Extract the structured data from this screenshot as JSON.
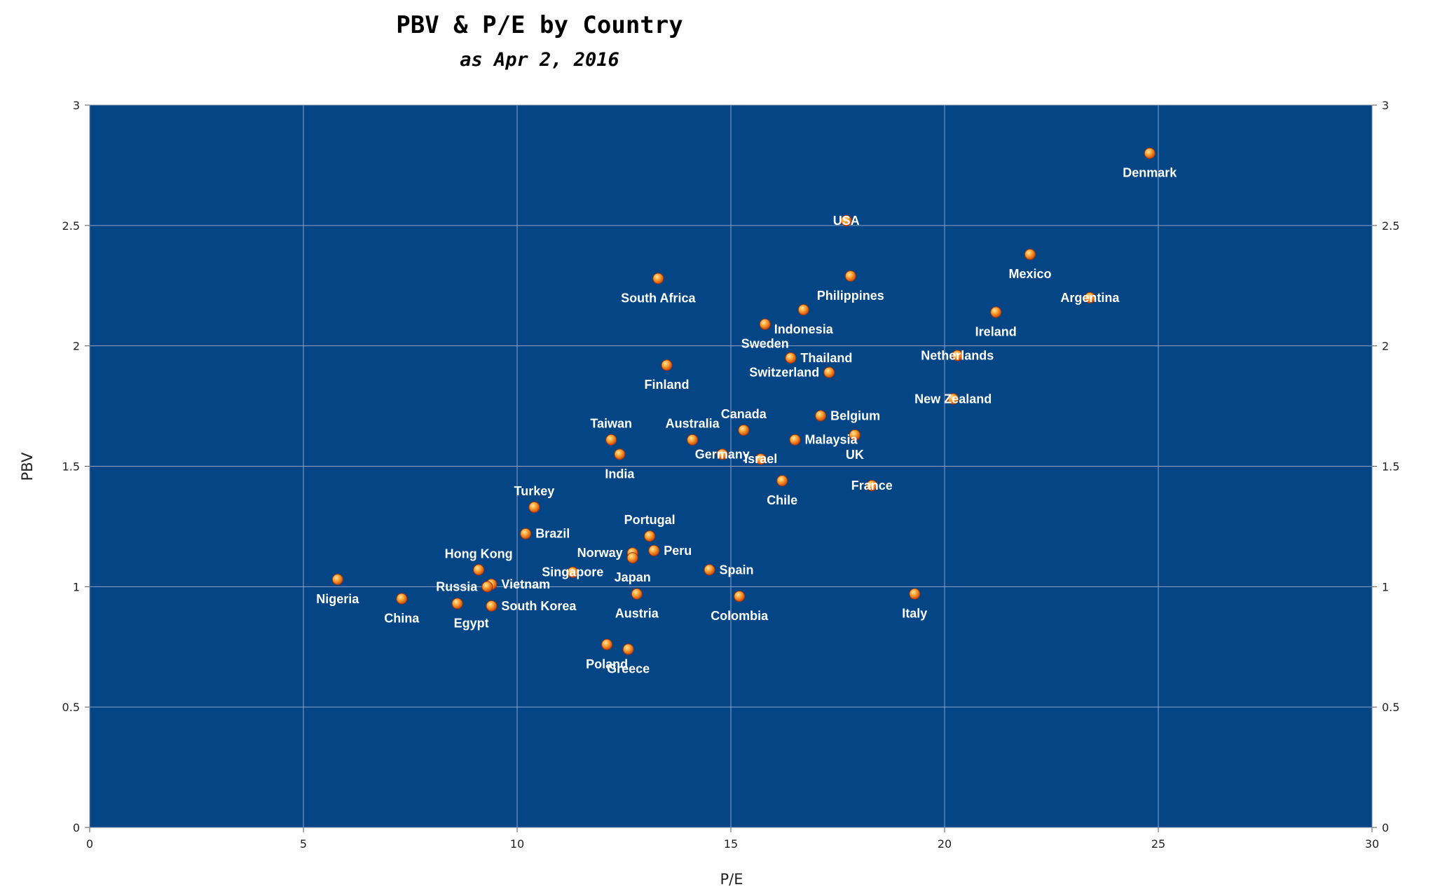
{
  "chart_data": {
    "type": "scatter",
    "title": "PBV & P/E by Country",
    "subtitle": "as Apr 2, 2016",
    "xlabel": "P/E",
    "ylabel": "PBV",
    "xlim": [
      0,
      30
    ],
    "ylim": [
      0,
      3
    ],
    "x_ticks": [
      "0",
      "5",
      "10",
      "15",
      "20",
      "25",
      "30"
    ],
    "y_ticks": [
      "0",
      "0.5",
      "1",
      "1.5",
      "2",
      "2.5",
      "3"
    ],
    "grid": true,
    "legend": "none",
    "colors": {
      "plot_background": "#034585",
      "gridline": "#8aa4c8",
      "marker": "#f07d1a",
      "label": "#ffffff"
    },
    "points": [
      {
        "name": "Denmark",
        "x": 24.8,
        "y": 2.8,
        "label_pos": "below"
      },
      {
        "name": "USA",
        "x": 17.7,
        "y": 2.52,
        "label_pos": "center"
      },
      {
        "name": "Mexico",
        "x": 22.0,
        "y": 2.38,
        "label_pos": "below"
      },
      {
        "name": "Philippines",
        "x": 17.8,
        "y": 2.29,
        "label_pos": "below"
      },
      {
        "name": "South Africa",
        "x": 13.3,
        "y": 2.28,
        "label_pos": "below"
      },
      {
        "name": "Argentina",
        "x": 23.4,
        "y": 2.2,
        "label_pos": "center"
      },
      {
        "name": "Indonesia",
        "x": 16.7,
        "y": 2.15,
        "label_pos": "below"
      },
      {
        "name": "Ireland",
        "x": 21.2,
        "y": 2.14,
        "label_pos": "below"
      },
      {
        "name": "Sweden",
        "x": 15.8,
        "y": 2.09,
        "label_pos": "below"
      },
      {
        "name": "Thailand",
        "x": 16.4,
        "y": 1.95,
        "label_pos": "right"
      },
      {
        "name": "Netherlands",
        "x": 20.3,
        "y": 1.96,
        "label_pos": "center"
      },
      {
        "name": "Finland",
        "x": 13.5,
        "y": 1.92,
        "label_pos": "below"
      },
      {
        "name": "Switzerland",
        "x": 17.3,
        "y": 1.89,
        "label_pos": "left"
      },
      {
        "name": "New Zealand",
        "x": 20.2,
        "y": 1.78,
        "label_pos": "center"
      },
      {
        "name": "Belgium",
        "x": 17.1,
        "y": 1.71,
        "label_pos": "right"
      },
      {
        "name": "Canada",
        "x": 15.3,
        "y": 1.65,
        "label_pos": "above"
      },
      {
        "name": "UK",
        "x": 17.9,
        "y": 1.63,
        "label_pos": "below"
      },
      {
        "name": "Taiwan",
        "x": 12.2,
        "y": 1.61,
        "label_pos": "above"
      },
      {
        "name": "Australia",
        "x": 14.1,
        "y": 1.61,
        "label_pos": "above"
      },
      {
        "name": "Malaysia",
        "x": 16.5,
        "y": 1.61,
        "label_pos": "right"
      },
      {
        "name": "India",
        "x": 12.4,
        "y": 1.55,
        "label_pos": "below"
      },
      {
        "name": "Germany",
        "x": 14.8,
        "y": 1.55,
        "label_pos": "center"
      },
      {
        "name": "Israel",
        "x": 15.7,
        "y": 1.53,
        "label_pos": "center"
      },
      {
        "name": "Chile",
        "x": 16.2,
        "y": 1.44,
        "label_pos": "below"
      },
      {
        "name": "France",
        "x": 18.3,
        "y": 1.42,
        "label_pos": "center"
      },
      {
        "name": "Turkey",
        "x": 10.4,
        "y": 1.33,
        "label_pos": "above"
      },
      {
        "name": "Brazil",
        "x": 10.2,
        "y": 1.22,
        "label_pos": "right"
      },
      {
        "name": "Portugal",
        "x": 13.1,
        "y": 1.21,
        "label_pos": "above"
      },
      {
        "name": "Peru",
        "x": 13.2,
        "y": 1.15,
        "label_pos": "right"
      },
      {
        "name": "Norway",
        "x": 12.7,
        "y": 1.14,
        "label_pos": "left"
      },
      {
        "name": "Japan",
        "x": 12.7,
        "y": 1.12,
        "label_pos": "below"
      },
      {
        "name": "Hong Kong",
        "x": 9.1,
        "y": 1.07,
        "label_pos": "above"
      },
      {
        "name": "Spain",
        "x": 14.5,
        "y": 1.07,
        "label_pos": "right"
      },
      {
        "name": "Singapore",
        "x": 11.3,
        "y": 1.06,
        "label_pos": "center"
      },
      {
        "name": "Nigeria",
        "x": 5.8,
        "y": 1.03,
        "label_pos": "below"
      },
      {
        "name": "Vietnam",
        "x": 9.4,
        "y": 1.01,
        "label_pos": "right"
      },
      {
        "name": "Russia",
        "x": 9.3,
        "y": 1.0,
        "label_pos": "left"
      },
      {
        "name": "Austria",
        "x": 12.8,
        "y": 0.97,
        "label_pos": "below"
      },
      {
        "name": "Italy",
        "x": 19.3,
        "y": 0.97,
        "label_pos": "below"
      },
      {
        "name": "Colombia",
        "x": 15.2,
        "y": 0.96,
        "label_pos": "below"
      },
      {
        "name": "China",
        "x": 7.3,
        "y": 0.95,
        "label_pos": "below"
      },
      {
        "name": "Egypt",
        "x": 8.6,
        "y": 0.93,
        "label_pos": "below-right"
      },
      {
        "name": "South Korea",
        "x": 9.4,
        "y": 0.92,
        "label_pos": "right"
      },
      {
        "name": "Poland",
        "x": 12.1,
        "y": 0.76,
        "label_pos": "below"
      },
      {
        "name": "Greece",
        "x": 12.6,
        "y": 0.74,
        "label_pos": "below"
      }
    ]
  }
}
